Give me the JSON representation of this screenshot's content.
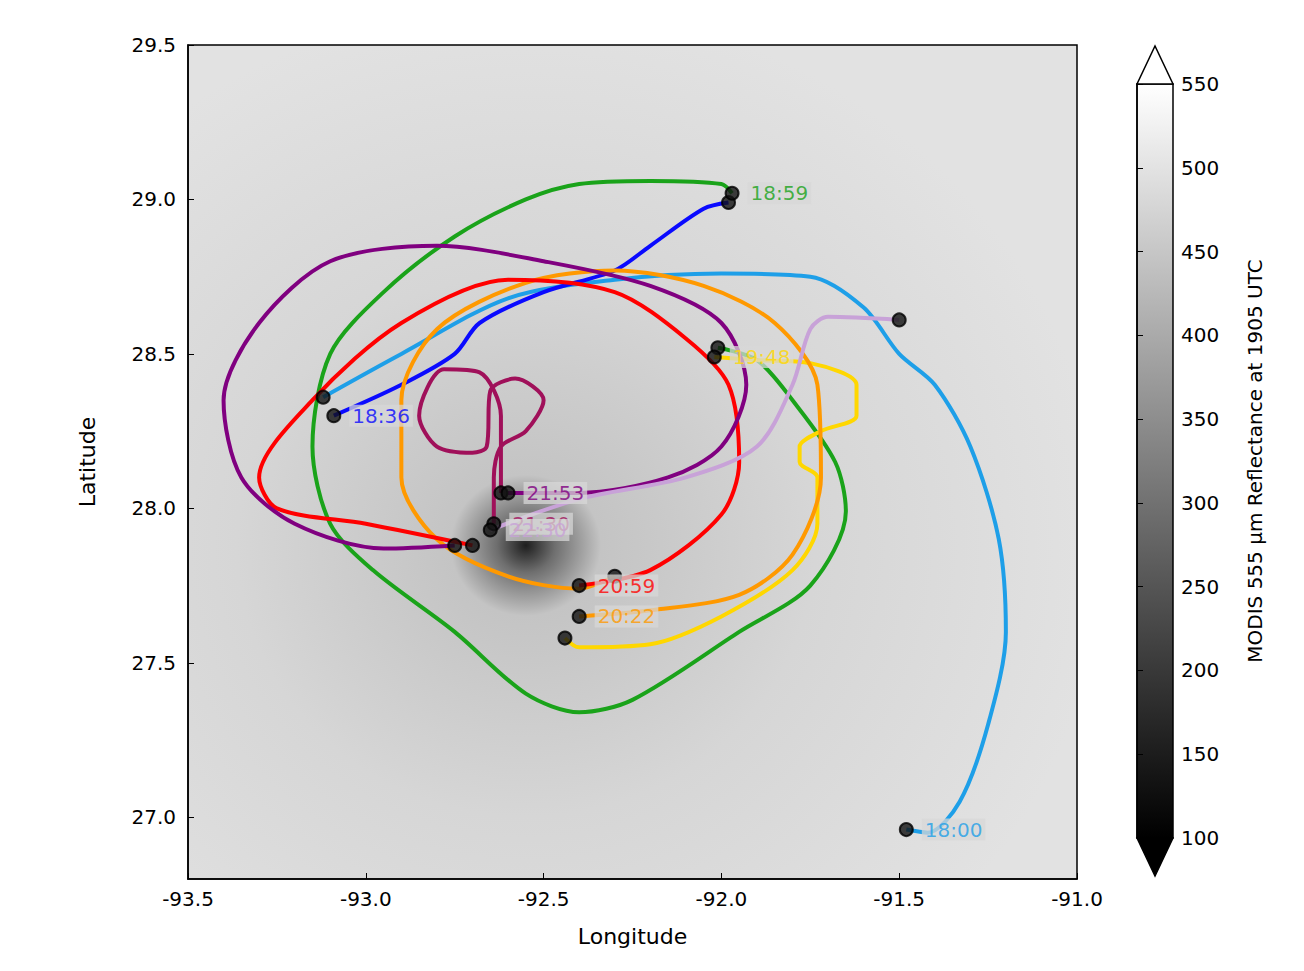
{
  "chart_data": {
    "type": "line",
    "xlabel": "Longitude",
    "ylabel": "Latitude",
    "xlim": [
      -93.5,
      -91.0
    ],
    "xticks": [
      -93.5,
      {
        "value": -93.0,
        "label": "-93.0"
      },
      -92.5,
      {
        "value": -92.0,
        "label": "-92.0"
      },
      -91.5,
      {
        "value": -91.0,
        "label": "-91.0"
      }
    ],
    "ylim": [
      26.8,
      29.5
    ],
    "yticks": [
      {
        "value": 27.0,
        "label": "27.0"
      },
      27.5,
      {
        "value": 28.0,
        "label": "28.0"
      },
      28.5,
      {
        "value": 29.0,
        "label": "29.0"
      },
      29.5
    ],
    "grid": false,
    "marker": "circle",
    "colorbar": {
      "label": "MODIS 555 μm Reflectance at 1905 UTC",
      "range": [
        100,
        550
      ],
      "ticks": [
        100,
        150,
        200,
        250,
        300,
        350,
        400,
        450,
        500,
        550
      ]
    },
    "series": [
      {
        "name": "18:00",
        "color": "#1e9fe8",
        "values": [
          [
            -91.48,
            26.96
          ],
          [
            -91.42,
            26.95
          ],
          [
            -91.33,
            27.05
          ],
          [
            -91.25,
            27.3
          ],
          [
            -91.2,
            27.6
          ],
          [
            -91.22,
            27.9
          ],
          [
            -91.3,
            28.2
          ],
          [
            -91.4,
            28.4
          ],
          [
            -91.5,
            28.5
          ],
          [
            -91.6,
            28.65
          ],
          [
            -91.75,
            28.75
          ],
          [
            -92.0,
            28.76
          ],
          [
            -92.3,
            28.74
          ],
          [
            -92.6,
            28.68
          ],
          [
            -92.9,
            28.5
          ],
          [
            -93.12,
            28.36
          ]
        ]
      },
      {
        "name": "18:36",
        "color": "#0a0aff",
        "values": [
          [
            -93.09,
            28.3
          ],
          [
            -92.9,
            28.4
          ],
          [
            -92.75,
            28.5
          ],
          [
            -92.68,
            28.6
          ],
          [
            -92.5,
            28.7
          ],
          [
            -92.3,
            28.77
          ],
          [
            -92.2,
            28.85
          ],
          [
            -92.05,
            28.97
          ],
          [
            -91.98,
            28.99
          ]
        ]
      },
      {
        "name": "18:59",
        "color": "#1aa31a",
        "values": [
          [
            -91.97,
            29.02
          ],
          [
            -92.0,
            29.05
          ],
          [
            -92.2,
            29.06
          ],
          [
            -92.4,
            29.05
          ],
          [
            -92.55,
            29.0
          ],
          [
            -92.75,
            28.88
          ],
          [
            -92.95,
            28.7
          ],
          [
            -93.1,
            28.5
          ],
          [
            -93.15,
            28.2
          ],
          [
            -93.1,
            27.95
          ],
          [
            -92.98,
            27.8
          ],
          [
            -92.75,
            27.6
          ],
          [
            -92.55,
            27.4
          ],
          [
            -92.4,
            27.34
          ],
          [
            -92.25,
            27.38
          ],
          [
            -91.95,
            27.6
          ],
          [
            -91.75,
            27.75
          ],
          [
            -91.65,
            27.99
          ],
          [
            -91.68,
            28.15
          ],
          [
            -91.8,
            28.35
          ],
          [
            -91.9,
            28.48
          ],
          [
            -92.01,
            28.52
          ]
        ]
      },
      {
        "name": "19:48",
        "color": "#ffd700",
        "values": [
          [
            -92.02,
            28.49
          ],
          [
            -91.9,
            28.48
          ],
          [
            -91.75,
            28.47
          ],
          [
            -91.62,
            28.4
          ],
          [
            -91.62,
            28.3
          ],
          [
            -91.72,
            28.25
          ],
          [
            -91.78,
            28.2
          ],
          [
            -91.78,
            28.15
          ],
          [
            -91.73,
            28.1
          ],
          [
            -91.73,
            27.95
          ],
          [
            -91.8,
            27.8
          ],
          [
            -92.0,
            27.65
          ],
          [
            -92.2,
            27.56
          ],
          [
            -92.4,
            27.55
          ],
          [
            -92.44,
            27.58
          ]
        ]
      },
      {
        "name": "20:22",
        "color": "#ff9900",
        "values": [
          [
            -92.4,
            27.65
          ],
          [
            -92.2,
            27.67
          ],
          [
            -91.95,
            27.72
          ],
          [
            -91.8,
            27.85
          ],
          [
            -91.72,
            28.1
          ],
          [
            -91.73,
            28.4
          ],
          [
            -91.85,
            28.6
          ],
          [
            -92.05,
            28.72
          ],
          [
            -92.3,
            28.77
          ],
          [
            -92.55,
            28.73
          ],
          [
            -92.8,
            28.58
          ],
          [
            -92.9,
            28.35
          ],
          [
            -92.9,
            28.1
          ],
          [
            -92.8,
            27.9
          ],
          [
            -92.6,
            27.78
          ],
          [
            -92.4,
            27.74
          ],
          [
            -92.3,
            27.78
          ]
        ]
      },
      {
        "name": "20:59",
        "color": "#ff0000",
        "values": [
          [
            -92.4,
            27.75
          ],
          [
            -92.2,
            27.8
          ],
          [
            -92.0,
            27.98
          ],
          [
            -91.95,
            28.15
          ],
          [
            -91.98,
            28.4
          ],
          [
            -92.1,
            28.55
          ],
          [
            -92.3,
            28.7
          ],
          [
            -92.6,
            28.74
          ],
          [
            -92.9,
            28.6
          ],
          [
            -93.15,
            28.35
          ],
          [
            -93.3,
            28.1
          ],
          [
            -93.25,
            28.0
          ],
          [
            -93.0,
            27.95
          ],
          [
            -92.7,
            27.88
          ]
        ]
      },
      {
        "name": "21:30",
        "color": "#a0105a",
        "values": [
          [
            -92.64,
            27.95
          ],
          [
            -92.64,
            28.1
          ],
          [
            -92.62,
            28.2
          ],
          [
            -92.55,
            28.25
          ],
          [
            -92.5,
            28.35
          ],
          [
            -92.58,
            28.42
          ],
          [
            -92.65,
            28.38
          ],
          [
            -92.66,
            28.2
          ],
          [
            -92.7,
            28.18
          ],
          [
            -92.8,
            28.2
          ],
          [
            -92.85,
            28.3
          ],
          [
            -92.78,
            28.45
          ],
          [
            -92.68,
            28.44
          ],
          [
            -92.62,
            28.3
          ],
          [
            -92.62,
            28.05
          ]
        ]
      },
      {
        "name": "21:53",
        "color": "#800080",
        "values": [
          [
            -92.6,
            28.05
          ],
          [
            -92.4,
            28.05
          ],
          [
            -92.15,
            28.1
          ],
          [
            -92.0,
            28.2
          ],
          [
            -91.93,
            28.4
          ],
          [
            -92.0,
            28.6
          ],
          [
            -92.2,
            28.72
          ],
          [
            -92.5,
            28.8
          ],
          [
            -92.8,
            28.85
          ],
          [
            -93.1,
            28.8
          ],
          [
            -93.3,
            28.6
          ],
          [
            -93.4,
            28.35
          ],
          [
            -93.35,
            28.1
          ],
          [
            -93.2,
            27.95
          ],
          [
            -92.95,
            27.87
          ],
          [
            -92.75,
            27.88
          ]
        ]
      },
      {
        "name": "22:30",
        "color": "#c8a2d8",
        "values": [
          [
            -92.65,
            27.93
          ],
          [
            -92.4,
            28.03
          ],
          [
            -92.1,
            28.1
          ],
          [
            -91.9,
            28.2
          ],
          [
            -91.8,
            28.4
          ],
          [
            -91.75,
            28.58
          ],
          [
            -91.7,
            28.62
          ],
          [
            -91.5,
            28.61
          ]
        ]
      }
    ]
  }
}
